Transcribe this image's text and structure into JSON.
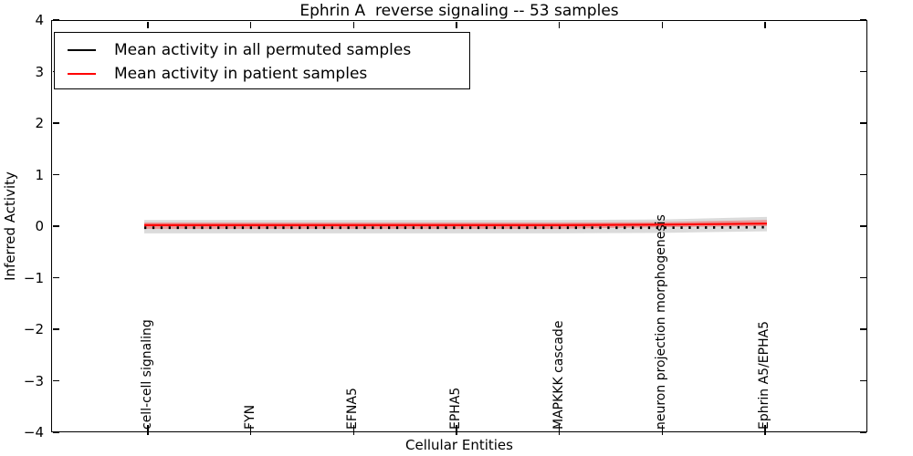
{
  "figure": {
    "title": "Ephrin A  reverse signaling -- 53 samples",
    "xlabel": "Cellular Entities",
    "ylabel": "Inferred Activity"
  },
  "legend": {
    "items": [
      {
        "label": "Mean activity in all permuted samples",
        "color": "#000000"
      },
      {
        "label": "Mean activity in patient samples",
        "color": "#ff0000"
      }
    ],
    "position": "upper left"
  },
  "axes": {
    "ytick_labels": [
      "4",
      "3",
      "2",
      "1",
      "0",
      "−1",
      "−2",
      "−3",
      "−4"
    ],
    "xtick_labels": [
      "cell-cell signaling",
      "FYN",
      "EFNA5",
      "EPHA5",
      "MAPKKK cascade",
      "neuron projection morphogenesis",
      "Ephrin A5/EPHA5"
    ]
  },
  "chart_data": {
    "type": "line",
    "title": "Ephrin A  reverse signaling -- 53 samples",
    "xlabel": "Cellular Entities",
    "ylabel": "Inferred Activity",
    "ylim": [
      -4,
      4
    ],
    "yticks": [
      4,
      3,
      2,
      1,
      0,
      -1,
      -2,
      -3,
      -4
    ],
    "grid": false,
    "legend_position": "upper left",
    "categories": [
      "cell-cell signaling",
      "FYN",
      "EFNA5",
      "EPHA5",
      "MAPKKK cascade",
      "neuron projection morphogenesis",
      "Ephrin A5/EPHA5"
    ],
    "x_axis_note": "many unlabeled cellular entities between the 7 labeled ticks; both curves run flat at ~0 across all entities",
    "series": [
      {
        "name": "Mean activity in all permuted samples",
        "color": "#000000",
        "render_style": "small tick marks (error-bar caps) just below the red line",
        "values": [
          -0.03,
          -0.03,
          -0.03,
          -0.03,
          -0.03,
          -0.03,
          -0.02
        ]
      },
      {
        "name": "Mean activity in patient samples",
        "color": "#ff0000",
        "render_style": "solid",
        "values": [
          0.02,
          0.02,
          0.02,
          0.02,
          0.02,
          0.03,
          0.05
        ]
      }
    ],
    "bands": [
      {
        "series": "Mean activity in all permuted samples",
        "color": "#999999",
        "opacity": 0.35,
        "upper": [
          0.12,
          0.12,
          0.12,
          0.12,
          0.12,
          0.13,
          0.18
        ],
        "lower": [
          -0.14,
          -0.14,
          -0.14,
          -0.14,
          -0.14,
          -0.13,
          -0.1
        ]
      },
      {
        "series": "Mean activity in patient samples",
        "color": "#ff0000",
        "opacity": 0.3,
        "upper": [
          0.07,
          0.07,
          0.07,
          0.07,
          0.07,
          0.08,
          0.12
        ],
        "lower": [
          -0.05,
          -0.05,
          -0.05,
          -0.05,
          -0.05,
          -0.02,
          0.0
        ]
      }
    ]
  }
}
